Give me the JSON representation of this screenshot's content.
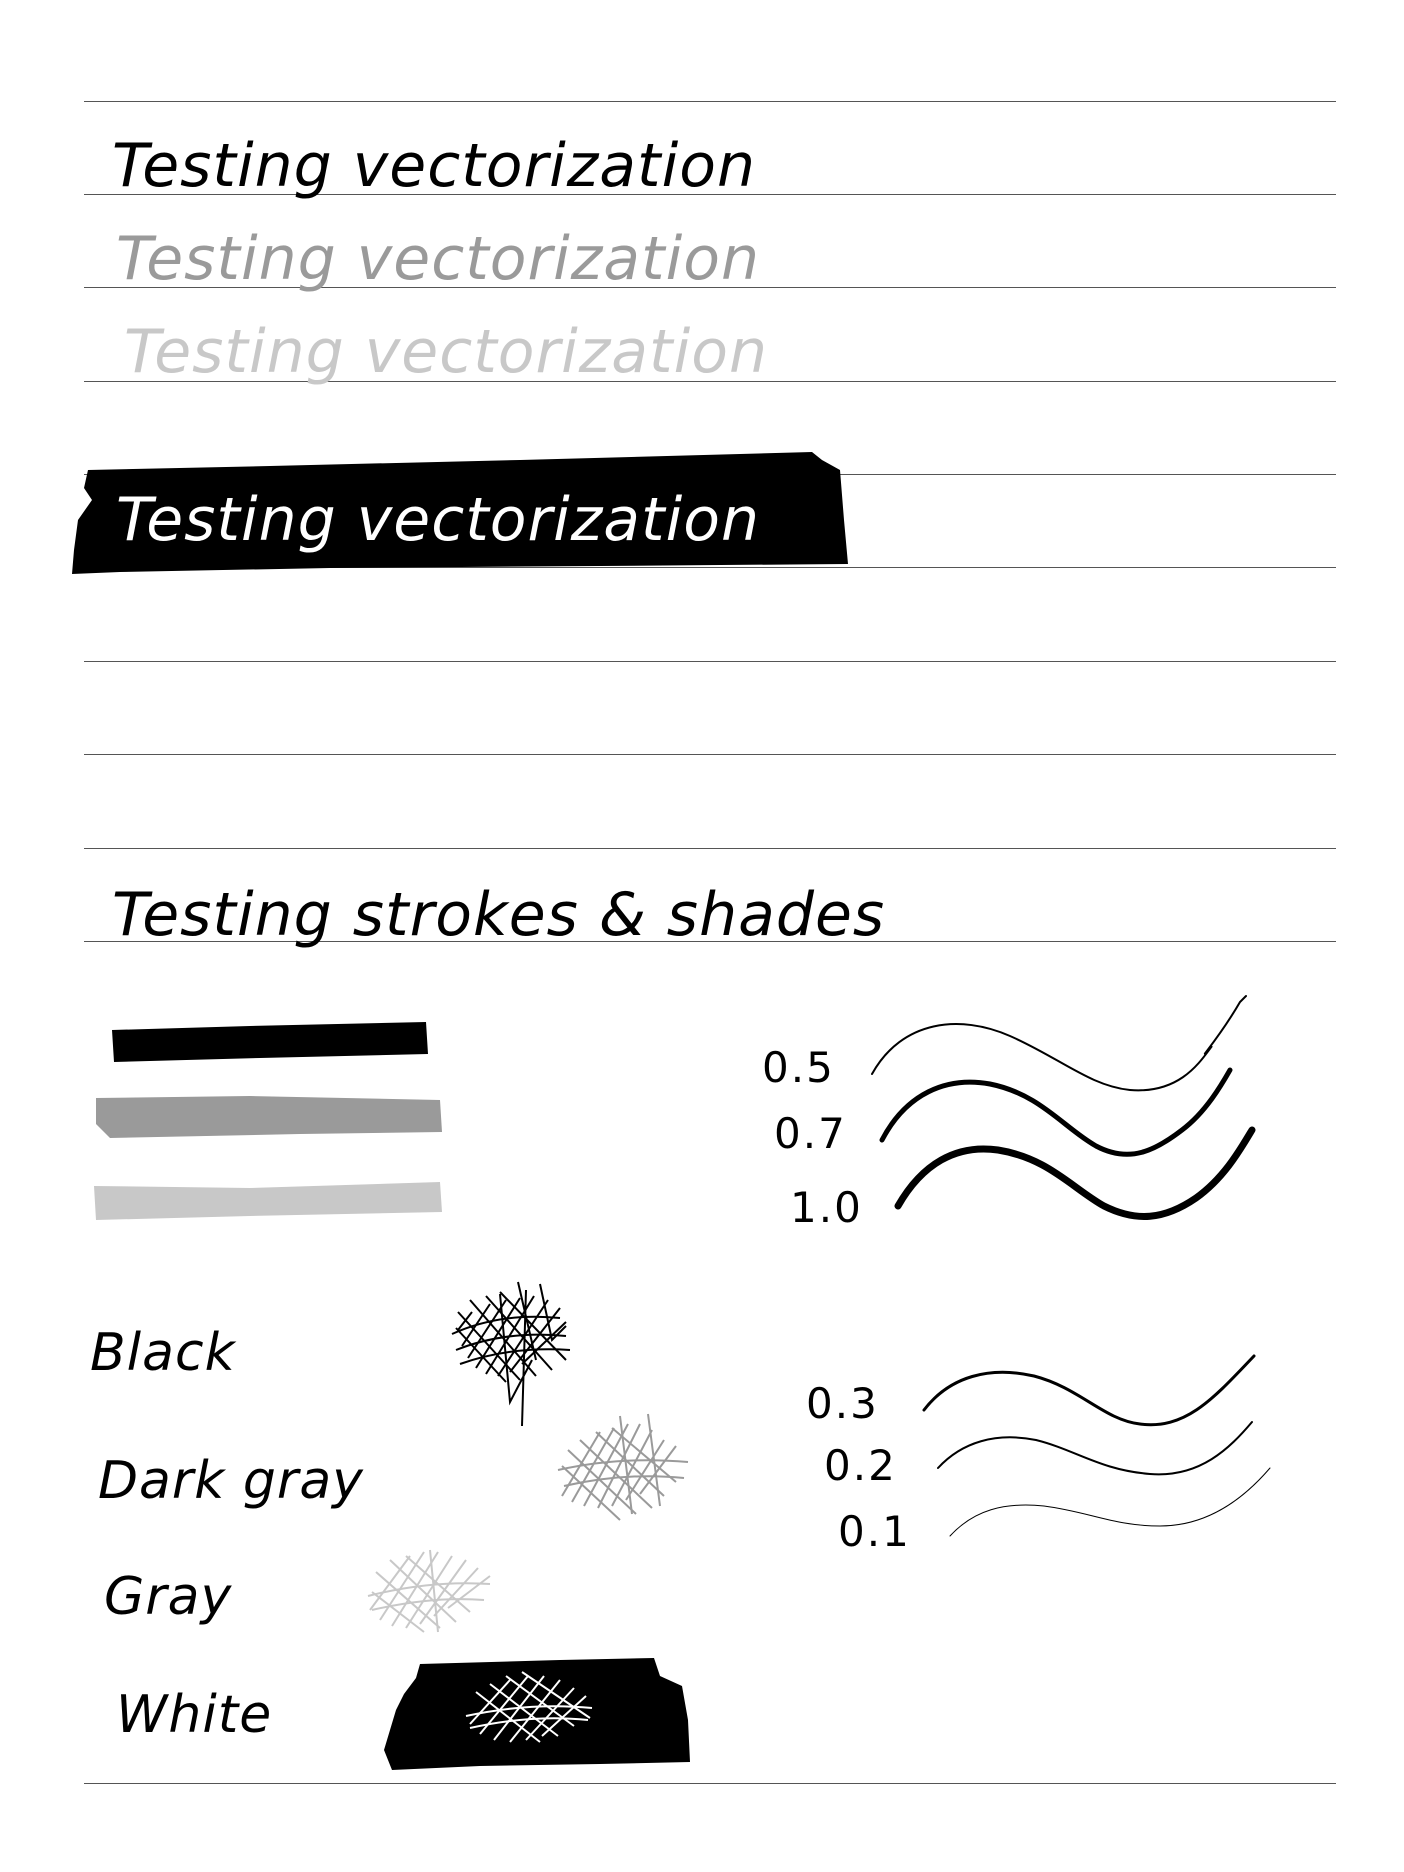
{
  "section1": {
    "text_black": "Testing vectorization",
    "text_dark_gray": "Testing vectorization",
    "text_gray": "Testing vectorization",
    "text_white": "Testing vectorization"
  },
  "section2": {
    "heading": "Testing strokes & shades",
    "color_labels": [
      "Black",
      "Dark gray",
      "Gray",
      "White"
    ],
    "width_labels_thick": [
      "0.5",
      "0.7",
      "1.0"
    ],
    "width_labels_thin": [
      "0.3",
      "0.2",
      "0.1"
    ]
  },
  "colors": {
    "black": "#000000",
    "dark_gray": "#9a9a9a",
    "gray": "#c8c8c8",
    "white": "#ffffff",
    "rule_line": "#555555"
  }
}
